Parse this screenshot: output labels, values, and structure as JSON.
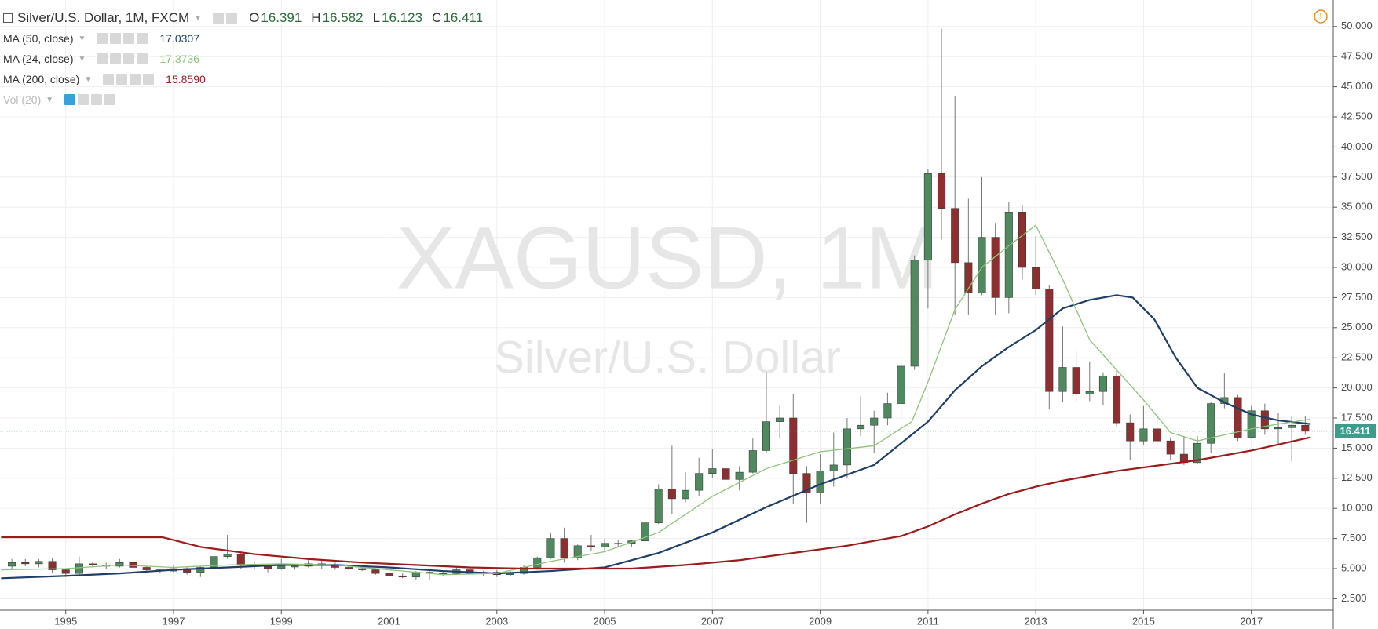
{
  "header": {
    "title": "Silver/U.S. Dollar, 1M, FXCM",
    "ohlc": [
      {
        "label": "O",
        "value": "16.391"
      },
      {
        "label": "H",
        "value": "16.582"
      },
      {
        "label": "L",
        "value": "16.123"
      },
      {
        "label": "C",
        "value": "16.411"
      }
    ]
  },
  "indicators": [
    {
      "name": "MA (50, close)",
      "value": "17.0307"
    },
    {
      "name": "MA (24, close)",
      "value": "17.3736"
    },
    {
      "name": "MA (200, close)",
      "value": "15.8590"
    },
    {
      "name": "Vol (20)"
    }
  ],
  "watermark": {
    "symbol": "XAGUSD, 1M",
    "description": "Silver/U.S. Dollar"
  },
  "chart_data": {
    "type": "candlestick",
    "up_color": "#4e8a5e",
    "down_color": "#8e2f2f",
    "x": [
      1994,
      1994.25,
      1994.5,
      1994.75,
      1995,
      1995.25,
      1995.5,
      1995.75,
      1996,
      1996.25,
      1996.5,
      1996.75,
      1997,
      1997.25,
      1997.5,
      1997.75,
      1998,
      1998.25,
      1998.5,
      1998.75,
      1999,
      1999.25,
      1999.5,
      1999.75,
      2000,
      2000.25,
      2000.5,
      2000.75,
      2001,
      2001.25,
      2001.5,
      2001.75,
      2002,
      2002.25,
      2002.5,
      2002.75,
      2003,
      2003.25,
      2003.5,
      2003.75,
      2004,
      2004.25,
      2004.5,
      2004.75,
      2005,
      2005.25,
      2005.5,
      2005.75,
      2006,
      2006.25,
      2006.5,
      2006.75,
      2007,
      2007.25,
      2007.5,
      2007.75,
      2008,
      2008.25,
      2008.5,
      2008.75,
      2009,
      2009.25,
      2009.5,
      2009.75,
      2010,
      2010.25,
      2010.5,
      2010.75,
      2011,
      2011.25,
      2011.5,
      2011.75,
      2012,
      2012.25,
      2012.5,
      2012.75,
      2013,
      2013.25,
      2013.5,
      2013.75,
      2014,
      2014.25,
      2014.5,
      2014.75,
      2015,
      2015.25,
      2015.5,
      2015.75,
      2016,
      2016.25,
      2016.5,
      2016.75,
      2017,
      2017.25,
      2017.5,
      2017.75,
      2018
    ],
    "open": [
      5.2,
      5.5,
      5.4,
      5.6,
      4.9,
      4.6,
      5.4,
      5.3,
      5.2,
      5.5,
      5.1,
      4.9,
      4.8,
      5.0,
      4.7,
      5.1,
      6.0,
      6.2,
      5.3,
      5.2,
      5.0,
      5.2,
      5.2,
      5.4,
      5.3,
      5.1,
      5.0,
      4.9,
      4.6,
      4.4,
      4.3,
      4.7,
      4.6,
      4.6,
      4.9,
      4.6,
      4.7,
      4.5,
      4.6,
      5.1,
      5.9,
      7.5,
      5.9,
      6.9,
      6.8,
      7.1,
      7.1,
      7.3,
      8.8,
      11.6,
      10.8,
      11.5,
      12.9,
      13.3,
      12.4,
      13.0,
      14.8,
      17.2,
      17.5,
      12.9,
      11.3,
      13.1,
      13.6,
      16.6,
      16.9,
      17.5,
      18.7,
      21.8,
      30.6,
      37.8,
      34.9,
      30.4,
      27.9,
      32.5,
      27.5,
      34.6,
      30.0,
      28.2,
      19.7,
      21.7,
      19.5,
      19.7,
      21.0,
      17.1,
      15.6,
      16.6,
      15.6,
      14.5,
      13.8,
      15.4,
      18.7,
      19.2,
      15.9,
      18.1,
      16.6,
      16.7,
      16.9
    ],
    "high": [
      5.8,
      5.8,
      5.8,
      5.9,
      5.0,
      6.0,
      5.6,
      5.5,
      5.8,
      5.6,
      5.2,
      5.0,
      5.3,
      5.1,
      5.2,
      6.4,
      7.8,
      6.4,
      5.6,
      5.4,
      5.8,
      5.4,
      5.7,
      5.7,
      5.5,
      5.2,
      5.1,
      5.0,
      4.8,
      4.6,
      4.8,
      4.8,
      4.8,
      5.1,
      5.0,
      4.8,
      4.9,
      4.8,
      5.3,
      6.0,
      8.0,
      8.4,
      7.0,
      7.8,
      7.5,
      7.4,
      7.4,
      9.0,
      12.0,
      15.2,
      13.0,
      14.2,
      14.9,
      14.1,
      13.5,
      15.8,
      21.3,
      18.5,
      19.5,
      13.5,
      14.5,
      16.3,
      17.5,
      19.3,
      18.1,
      19.6,
      22.1,
      31.0,
      38.2,
      49.8,
      44.2,
      35.7,
      37.5,
      33.7,
      35.4,
      35.2,
      32.6,
      28.5,
      25.1,
      23.1,
      22.2,
      21.3,
      21.6,
      17.8,
      18.5,
      17.8,
      15.9,
      16.0,
      16.0,
      18.8,
      21.2,
      19.4,
      18.5,
      18.7,
      17.9,
      17.6,
      17.7
    ],
    "low": [
      5.0,
      5.2,
      5.1,
      4.6,
      4.3,
      4.5,
      5.1,
      5.0,
      5.1,
      5.0,
      4.7,
      4.6,
      4.6,
      4.5,
      4.3,
      4.9,
      5.8,
      5.0,
      4.9,
      4.7,
      4.9,
      4.9,
      5.1,
      5.0,
      4.9,
      4.9,
      4.8,
      4.5,
      4.3,
      4.2,
      4.1,
      4.1,
      4.4,
      4.5,
      4.5,
      4.4,
      4.3,
      4.4,
      4.5,
      4.9,
      5.8,
      5.5,
      5.7,
      6.5,
      6.4,
      6.8,
      6.8,
      7.2,
      8.7,
      9.5,
      10.5,
      11.0,
      12.5,
      12.3,
      11.5,
      12.9,
      14.6,
      15.8,
      10.4,
      8.8,
      10.4,
      11.8,
      12.5,
      16.0,
      14.6,
      16.9,
      17.3,
      21.5,
      26.6,
      32.3,
      26.1,
      26.1,
      27.7,
      26.1,
      26.2,
      29.0,
      27.7,
      18.2,
      18.8,
      18.9,
      18.9,
      18.6,
      16.8,
      14.0,
      15.3,
      15.3,
      14.0,
      13.6,
      13.7,
      14.6,
      18.3,
      15.6,
      15.8,
      16.1,
      15.2,
      13.9,
      16.1
    ],
    "close": [
      5.5,
      5.4,
      5.6,
      4.9,
      4.6,
      5.4,
      5.3,
      5.2,
      5.5,
      5.1,
      4.9,
      4.8,
      5.0,
      4.7,
      5.1,
      6.0,
      6.2,
      5.3,
      5.2,
      5.0,
      5.2,
      5.2,
      5.4,
      5.3,
      5.1,
      5.0,
      4.9,
      4.6,
      4.4,
      4.3,
      4.7,
      4.6,
      4.6,
      4.9,
      4.6,
      4.7,
      4.5,
      4.6,
      5.1,
      5.9,
      7.5,
      5.9,
      6.9,
      6.8,
      7.1,
      7.1,
      7.3,
      8.8,
      11.6,
      10.8,
      11.5,
      12.9,
      13.3,
      12.4,
      13.0,
      14.8,
      17.2,
      17.5,
      12.9,
      11.3,
      13.1,
      13.6,
      16.6,
      16.9,
      17.5,
      18.7,
      21.8,
      30.6,
      37.8,
      34.9,
      30.4,
      27.9,
      32.5,
      27.5,
      34.6,
      30.0,
      28.2,
      19.7,
      21.7,
      19.5,
      19.7,
      21.0,
      17.1,
      15.6,
      16.6,
      15.6,
      14.5,
      13.8,
      15.4,
      18.7,
      19.2,
      15.9,
      18.1,
      16.6,
      16.7,
      16.9,
      16.4
    ],
    "series": [
      {
        "color": "#1f3f68",
        "x": [
          1993.8,
          1995,
          1996,
          1997,
          1998,
          1999,
          2000,
          2001,
          2002,
          2003,
          2004,
          2005,
          2006,
          2007,
          2008,
          2009,
          2010,
          2011,
          2011.5,
          2012,
          2012.5,
          2013,
          2013.5,
          2014,
          2014.5,
          2014.8,
          2015.2,
          2015.6,
          2016,
          2016.5,
          2017,
          2017.5,
          2018.1
        ],
        "values": [
          4.2,
          4.4,
          4.6,
          4.9,
          5.1,
          5.3,
          5.3,
          5.1,
          4.8,
          4.6,
          4.8,
          5.1,
          6.3,
          8.0,
          10.1,
          12.0,
          13.6,
          17.2,
          19.8,
          21.8,
          23.4,
          24.8,
          26.6,
          27.3,
          27.7,
          27.5,
          25.7,
          22.5,
          20.0,
          18.8,
          17.8,
          17.3,
          17.0
        ]
      },
      {
        "color": "#8cc47a",
        "x": [
          1993.8,
          1995,
          1996,
          1997,
          1998,
          1999,
          2000,
          2001,
          2002,
          2003,
          2004,
          2005,
          2006,
          2007,
          2008,
          2009,
          2010,
          2010.7,
          2011,
          2011.5,
          2012,
          2012.5,
          2013,
          2013.5,
          2014,
          2014.5,
          2015,
          2015.5,
          2016,
          2016.5,
          2017,
          2017.5,
          2018.1
        ],
        "values": [
          4.9,
          5.0,
          5.3,
          5.1,
          5.3,
          5.4,
          5.3,
          4.9,
          4.5,
          4.6,
          5.6,
          6.4,
          8.0,
          11.0,
          13.3,
          14.7,
          15.2,
          17.2,
          20.5,
          26.5,
          30.0,
          31.8,
          33.5,
          29.0,
          24.0,
          21.5,
          19.0,
          16.3,
          15.6,
          16.1,
          16.6,
          17.0,
          17.4
        ]
      },
      {
        "color": "#9a1c1c",
        "x": [
          1993.8,
          1996.8,
          1997.5,
          1998.5,
          1999.5,
          2000.5,
          2001.5,
          2002.5,
          2003.5,
          2004.5,
          2005.5,
          2006.5,
          2007.5,
          2008.5,
          2009.5,
          2010.5,
          2011,
          2011.5,
          2012,
          2012.5,
          2013,
          2013.5,
          2014,
          2014.5,
          2015,
          2015.5,
          2016,
          2016.5,
          2017,
          2017.5,
          2018.1
        ],
        "values": [
          7.6,
          7.6,
          6.8,
          6.2,
          5.8,
          5.5,
          5.3,
          5.1,
          5.0,
          5.0,
          5.0,
          5.3,
          5.7,
          6.3,
          6.9,
          7.7,
          8.5,
          9.5,
          10.4,
          11.2,
          11.8,
          12.3,
          12.7,
          13.1,
          13.4,
          13.7,
          14.0,
          14.4,
          14.8,
          15.3,
          15.9
        ]
      }
    ],
    "last_price": 16.411,
    "last_color": "#3d9c8c",
    "xlim": [
      1993.78,
      2018.52
    ],
    "xticks": [
      1995,
      1997,
      1999,
      2001,
      2003,
      2005,
      2007,
      2009,
      2011,
      2013,
      2015,
      2017
    ],
    "ylim": [
      1.55,
      52.2
    ],
    "yticks": [
      {
        "value": 2.5,
        "label": "2.500"
      },
      {
        "value": 5,
        "label": "5.000"
      },
      {
        "value": 7.5,
        "label": "7.500"
      },
      {
        "value": 10,
        "label": "10.000"
      },
      {
        "value": 12.5,
        "label": "12.500"
      },
      {
        "value": 15,
        "label": "15.000"
      },
      {
        "value": 17.5,
        "label": "17.500"
      },
      {
        "value": 20,
        "label": "20.000"
      },
      {
        "value": 22.5,
        "label": "22.500"
      },
      {
        "value": 25,
        "label": "25.000"
      },
      {
        "value": 27.5,
        "label": "27.500"
      },
      {
        "value": 30,
        "label": "30.000"
      },
      {
        "value": 32.5,
        "label": "32.500"
      },
      {
        "value": 35,
        "label": "35.000"
      },
      {
        "value": 37.5,
        "label": "37.500"
      },
      {
        "value": 40,
        "label": "40.000"
      },
      {
        "value": 42.5,
        "label": "42.500"
      },
      {
        "value": 45,
        "label": "45.000"
      },
      {
        "value": 47.5,
        "label": "47.500"
      },
      {
        "value": 50,
        "label": "50.000"
      }
    ],
    "grid": true
  }
}
